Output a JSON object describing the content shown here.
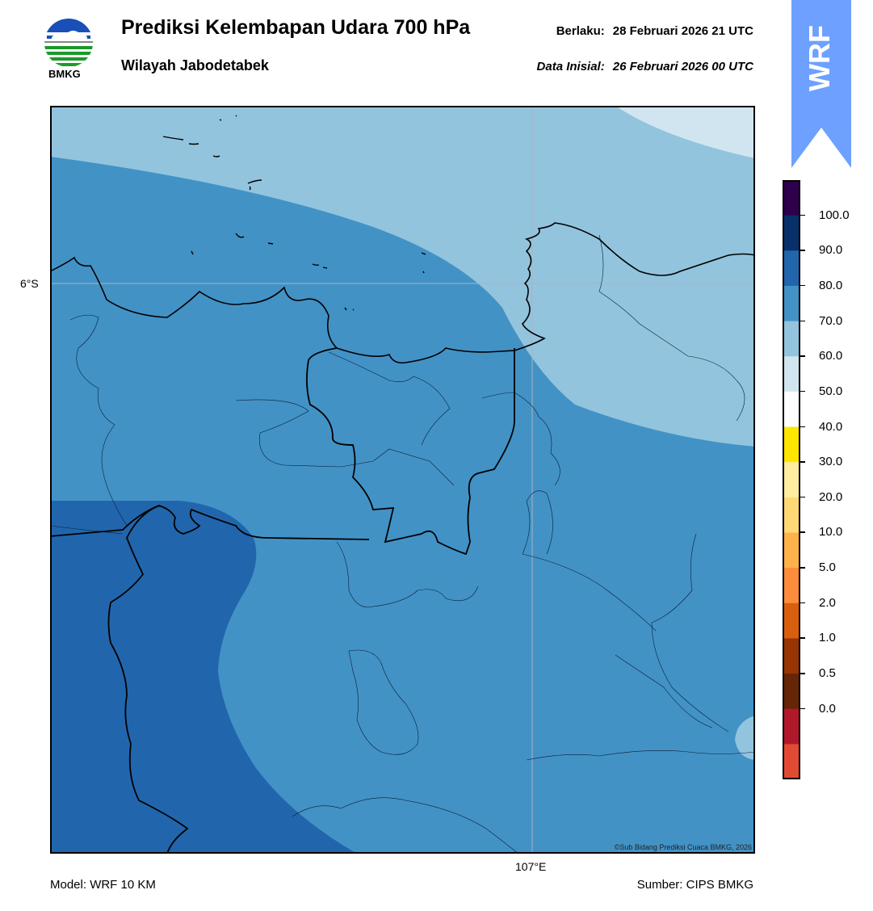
{
  "header": {
    "title": "Prediksi Kelembapan Udara 700 hPa",
    "region": "Wilayah Jabodetabek",
    "valid_label": "Berlaku:",
    "valid_time": "28 Februari 2026 21 UTC",
    "init_label": "Data Inisial:",
    "init_time": "26 Februari 2026 00 UTC"
  },
  "logo": {
    "name": "BMKG",
    "icon": "bmkg-logo"
  },
  "badge": {
    "text": "WRF",
    "color": "#6ea0ff"
  },
  "map": {
    "lat_label": "6°S",
    "lon_label": "107°E",
    "copyright": "©Sub Bidang Prediksi Cuaca BMKG, 2026",
    "fill_colors": {
      "light": "#92c4de",
      "medium": "#4292c6",
      "dark": "#2166ac",
      "pale": "#d1e5f0"
    }
  },
  "colorbar": {
    "ticks": [
      "100.0",
      "90.0",
      "80.0",
      "70.0",
      "60.0",
      "50.0",
      "40.0",
      "30.0",
      "20.0",
      "10.0",
      "5.0",
      "2.0",
      "1.0",
      "0.5",
      "0.0"
    ],
    "colors": [
      "#2d004b",
      "#08306b",
      "#2166ac",
      "#4292c6",
      "#92c4de",
      "#d1e5f0",
      "#ffffff",
      "#ffe600",
      "#ffeda0",
      "#fed976",
      "#feb24c",
      "#fd8d3c",
      "#d95f0e",
      "#993404",
      "#662506",
      "#b2182b",
      "#e34a33"
    ]
  },
  "footer": {
    "model": "Model: WRF 10 KM",
    "source": "Sumber: CIPS BMKG"
  }
}
